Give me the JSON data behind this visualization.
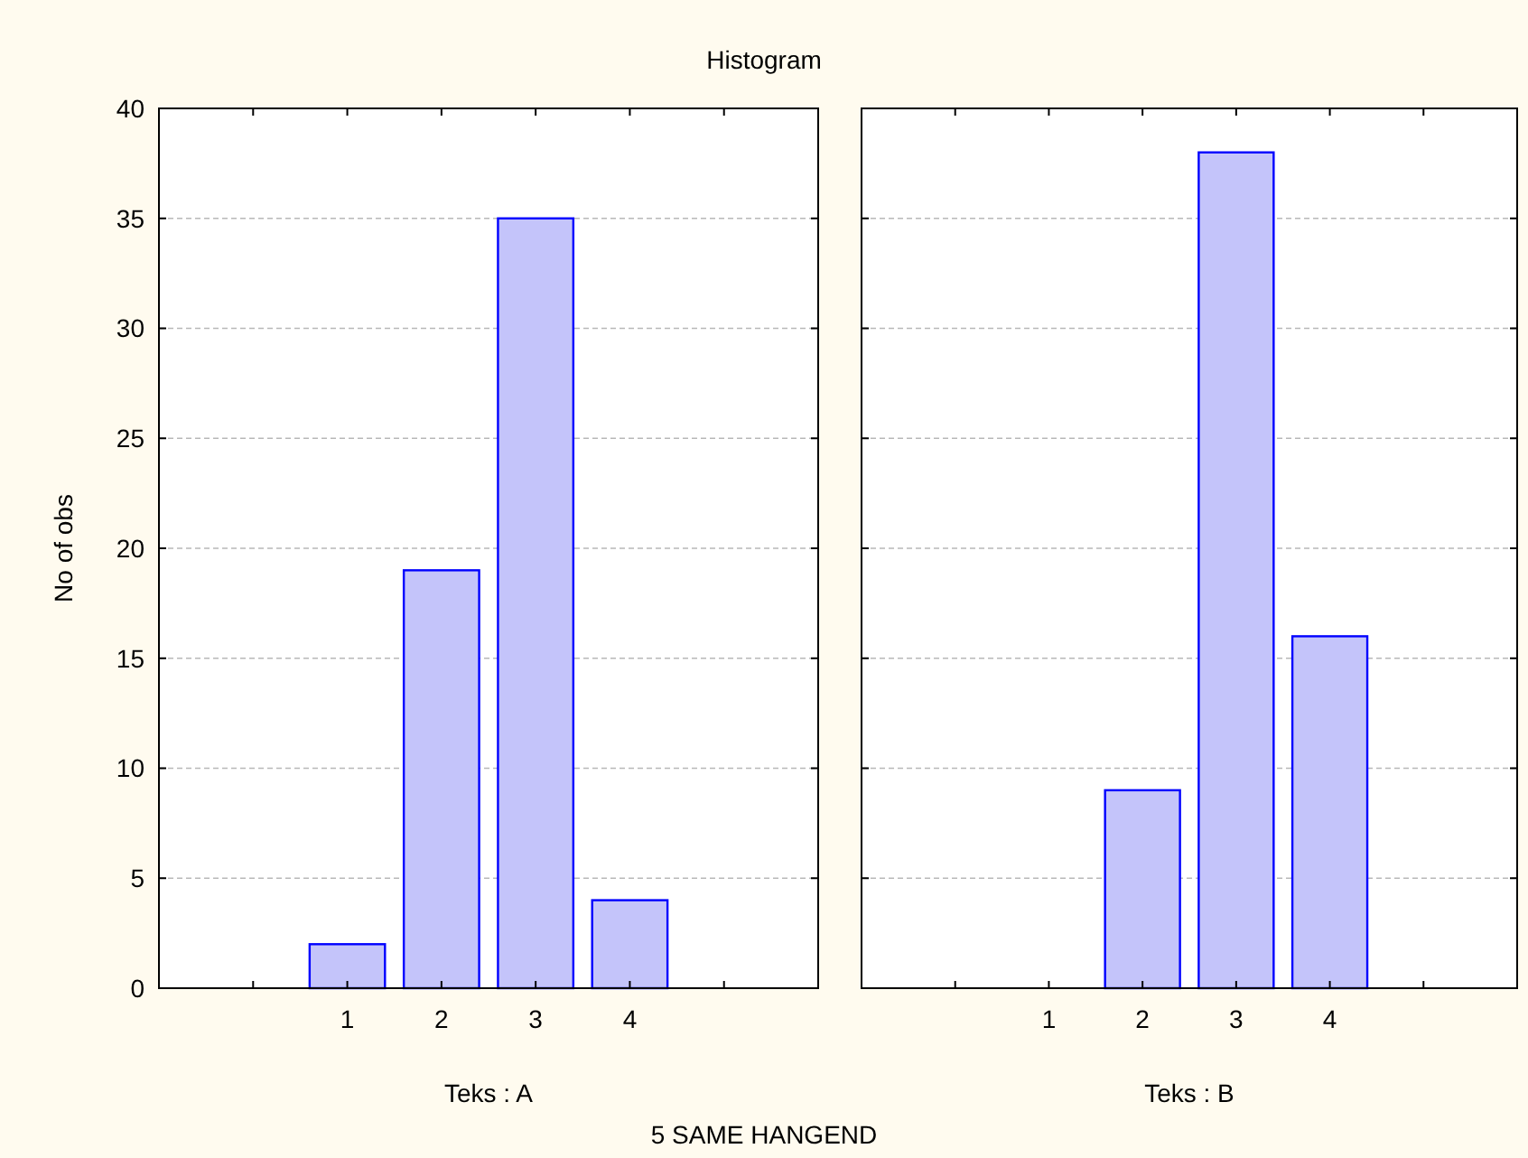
{
  "chart_data": [
    {
      "type": "bar",
      "title": "Histogram",
      "ylabel": "No of obs",
      "xlabel": "Teks : A",
      "x": [
        1,
        2,
        3,
        4
      ],
      "values": [
        2,
        19,
        35,
        4
      ],
      "color": "#c4c4fa",
      "xlim": [
        -1,
        6
      ],
      "xticks": [
        {
          "value": -1,
          "label": null
        },
        {
          "value": 0,
          "label": null
        },
        1,
        2,
        3,
        4,
        {
          "value": 5,
          "label": null
        }
      ],
      "ylim": [
        0,
        40
      ],
      "yticks": [
        0,
        5,
        10,
        15,
        20,
        25,
        30,
        35,
        40
      ],
      "grid": "y",
      "annotations": [
        "5 SAME HANGEND"
      ]
    },
    {
      "type": "bar",
      "xlabel": "Teks : B",
      "x": [
        1,
        2,
        3,
        4
      ],
      "values": [
        0,
        9,
        38,
        16
      ],
      "color": "#c4c4fa",
      "xlim": [
        -1,
        6
      ],
      "xticks": [
        {
          "value": -1,
          "label": null
        },
        {
          "value": 0,
          "label": null
        },
        1,
        2,
        3,
        4,
        {
          "value": 5,
          "label": null
        }
      ],
      "ylim": [
        0,
        40
      ],
      "yticks": [
        0,
        5,
        10,
        15,
        20,
        25,
        30,
        35,
        40
      ],
      "grid": "y",
      "tick_labels": "x"
    }
  ]
}
